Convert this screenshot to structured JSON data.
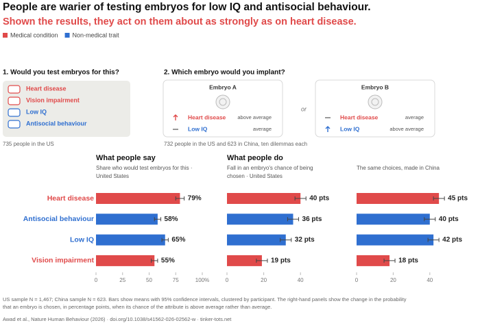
{
  "header": {
    "title": "People are warier of testing embryos for low IQ and antisocial behaviour.",
    "subtitle": "Shown the results, they act on them about as strongly as on heart disease.",
    "subtitle_color": "#e04a4a",
    "legend": [
      {
        "label": "Medical condition",
        "color": "#e04a4a"
      },
      {
        "label": "Non-medical trait",
        "color": "#2f6fd0"
      }
    ]
  },
  "question1": {
    "title": "1.  Would you test embryos for this?",
    "options": [
      {
        "label": "Heart disease",
        "color": "#e04a4a"
      },
      {
        "label": "Vision impairment",
        "color": "#e04a4a"
      },
      {
        "label": "Low IQ",
        "color": "#2f6fd0"
      },
      {
        "label": "Antisocial behaviour",
        "color": "#2f6fd0"
      }
    ],
    "note": "735 people in the US"
  },
  "question2": {
    "title": "2.  Which embryo would you implant?",
    "embryos": [
      {
        "name": "Embryo A",
        "rows": [
          {
            "trait": "Heart disease",
            "color": "#e04a4a",
            "direction": "up",
            "level": "above average"
          },
          {
            "trait": "Low IQ",
            "color": "#2f6fd0",
            "direction": "none",
            "level": "average"
          }
        ]
      },
      {
        "name": "Embryo B",
        "rows": [
          {
            "trait": "Heart disease",
            "color": "#e04a4a",
            "direction": "none",
            "level": "average"
          },
          {
            "trait": "Low IQ",
            "color": "#2f6fd0",
            "direction": "up",
            "level": "above average"
          }
        ]
      }
    ],
    "separator": "or",
    "note": "732 people in the US and 623 in China, ten dilemmas each"
  },
  "chart_data": [
    {
      "type": "bar",
      "title": "What people say",
      "subtitle": "Share who would test embryos for this · United States",
      "categories": [
        "Heart disease",
        "Antisocial behaviour",
        "Low IQ",
        "Vision impairment"
      ],
      "colors": [
        "#e04a4a",
        "#2f6fd0",
        "#2f6fd0",
        "#e04a4a"
      ],
      "values": [
        79,
        58,
        65,
        55
      ],
      "errors": [
        4,
        3,
        3,
        3
      ],
      "value_labels": [
        "79%",
        "58%",
        "65%",
        "55%"
      ],
      "xlim": [
        0,
        100
      ],
      "xticks": [
        0,
        25,
        50,
        75,
        {
          "value": 100,
          "label": "100%"
        }
      ],
      "grid": false
    },
    {
      "type": "bar",
      "title": "What people do",
      "subtitle": "Fall in an embryo's chance of being chosen · United States",
      "colors": [
        "#e04a4a",
        "#2f6fd0",
        "#2f6fd0",
        "#e04a4a"
      ],
      "values": [
        40,
        36,
        32,
        19
      ],
      "errors": [
        3,
        3,
        3,
        3
      ],
      "value_labels": [
        "40 pts",
        "36 pts",
        "32 pts",
        "19 pts"
      ],
      "xlim": [
        0,
        50
      ],
      "xticks": [
        0,
        20,
        40
      ],
      "grid": false
    },
    {
      "type": "bar",
      "subtitle": "The same choices, made in China",
      "colors": [
        "#e04a4a",
        "#2f6fd0",
        "#2f6fd0",
        "#e04a4a"
      ],
      "values": [
        45,
        40,
        42,
        18
      ],
      "errors": [
        3,
        3,
        3,
        3
      ],
      "value_labels": [
        "45 pts",
        "40 pts",
        "42 pts",
        "18 pts"
      ],
      "xlim": [
        0,
        50
      ],
      "xticks": [
        0,
        20,
        40
      ],
      "grid": false
    }
  ],
  "footer": {
    "note": "US sample N = 1,467; China sample N = 623. Bars show means with 95% confidence intervals, clustered by participant. The right-hand panels show the change in the probability that an embryo is chosen, in percentage points, when its chance of the attribute is above average rather than average.",
    "source": "Awad et al., Nature Human Behaviour (2026) · doi.org/10.1038/s41562-026-02562-w · tinker-tots.net"
  }
}
